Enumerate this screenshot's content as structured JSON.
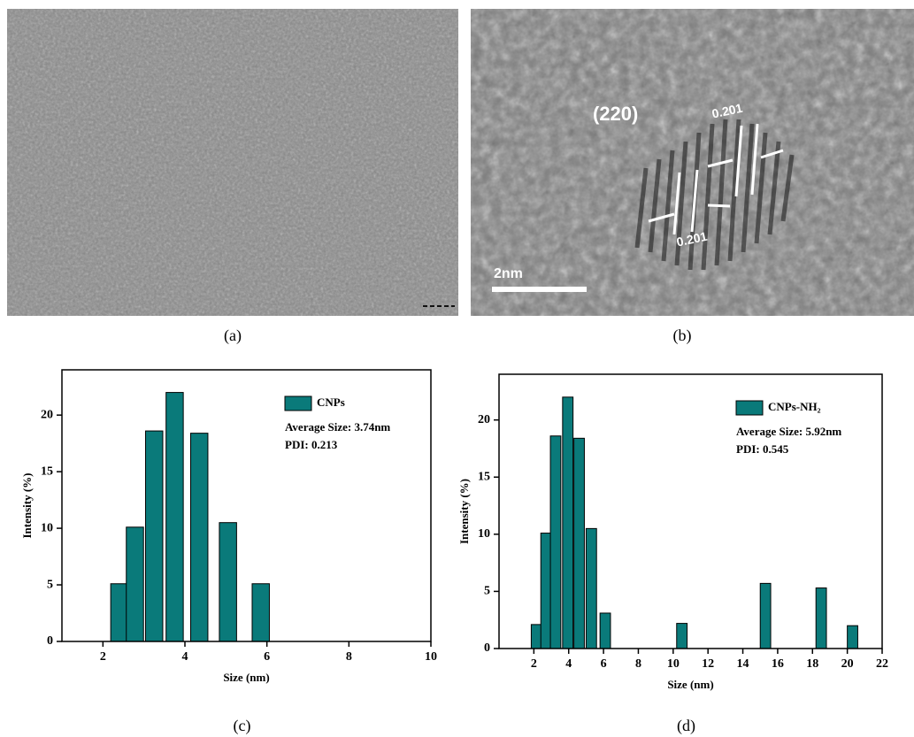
{
  "images": [
    {
      "caption": "(a)"
    },
    {
      "caption": "(b)",
      "plane": "(220)",
      "spacing_top": "0.201",
      "spacing_bottom": "0.201",
      "scale_bar": "2nm"
    }
  ],
  "chart_data": [
    {
      "type": "bar",
      "caption": "(c)",
      "xlabel": "Size (nm)",
      "ylabel": "Intensity (%)",
      "x": [
        2.4,
        2.78,
        3.25,
        3.75,
        4.35,
        5.05,
        5.85
      ],
      "series": [
        {
          "name": "CNPs",
          "color": "#0a7a7a",
          "values": [
            5.1,
            10.1,
            18.6,
            22,
            18.4,
            10.5,
            5.1
          ]
        }
      ],
      "annotations": [
        "Average Size: 3.74nm",
        "PDI: 0.213"
      ],
      "xlim": [
        1,
        10
      ],
      "xticks": [
        2,
        4,
        6,
        8,
        10
      ],
      "ylim": [
        0,
        24
      ],
      "yticks": [
        0,
        5,
        10,
        15,
        20
      ]
    },
    {
      "type": "bar",
      "caption": "(d)",
      "xlabel": "Size (nm)",
      "ylabel": "Intensity (%)",
      "x": [
        2.15,
        2.7,
        3.25,
        3.95,
        4.6,
        5.3,
        6.1,
        10.5,
        15.3,
        18.5,
        20.3
      ],
      "series": [
        {
          "name": "CNPs-NH₂",
          "color": "#0a7a7a",
          "values": [
            2.1,
            10.1,
            18.6,
            22,
            18.4,
            10.5,
            3.1,
            2.2,
            5.7,
            5.3,
            2.0
          ]
        }
      ],
      "annotations": [
        "Average Size: 5.92nm",
        "PDI: 0.545"
      ],
      "xlim": [
        0,
        22
      ],
      "xticks": [
        2,
        4,
        6,
        8,
        10,
        12,
        14,
        16,
        18,
        20,
        22
      ],
      "ylim": [
        0,
        24
      ],
      "yticks": [
        0,
        5,
        10,
        15,
        20
      ]
    }
  ]
}
